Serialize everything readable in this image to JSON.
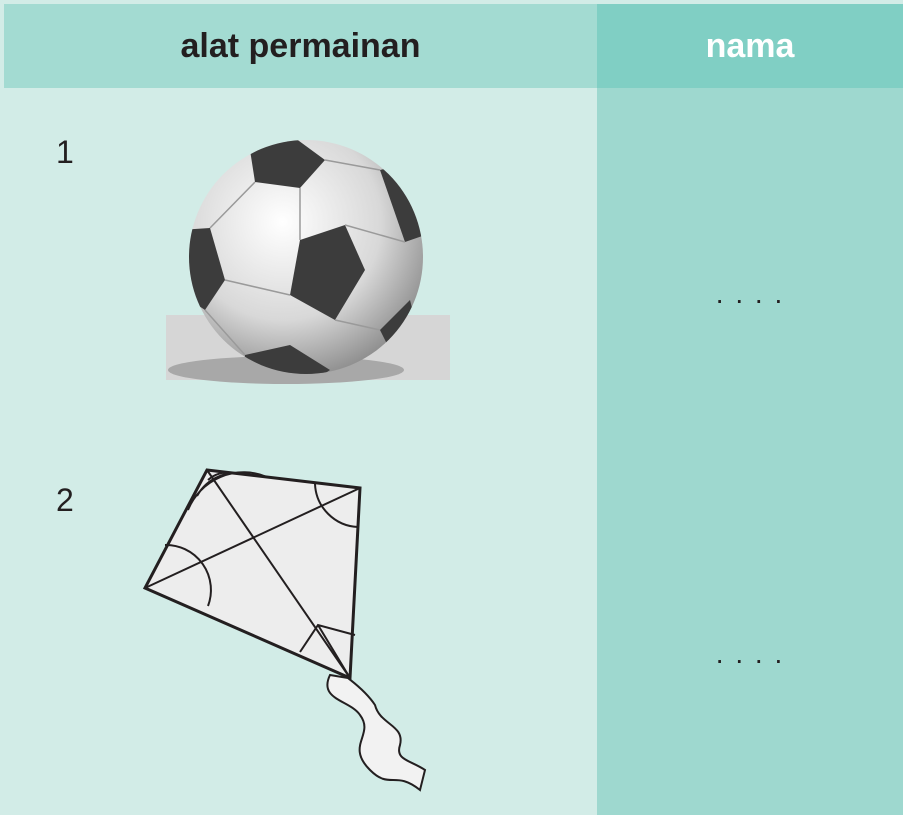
{
  "table": {
    "header": [
      "alat permainan",
      "nama"
    ],
    "rows": [
      [
        "1",
        ". . . ."
      ],
      [
        "2",
        ". . . ."
      ]
    ]
  }
}
